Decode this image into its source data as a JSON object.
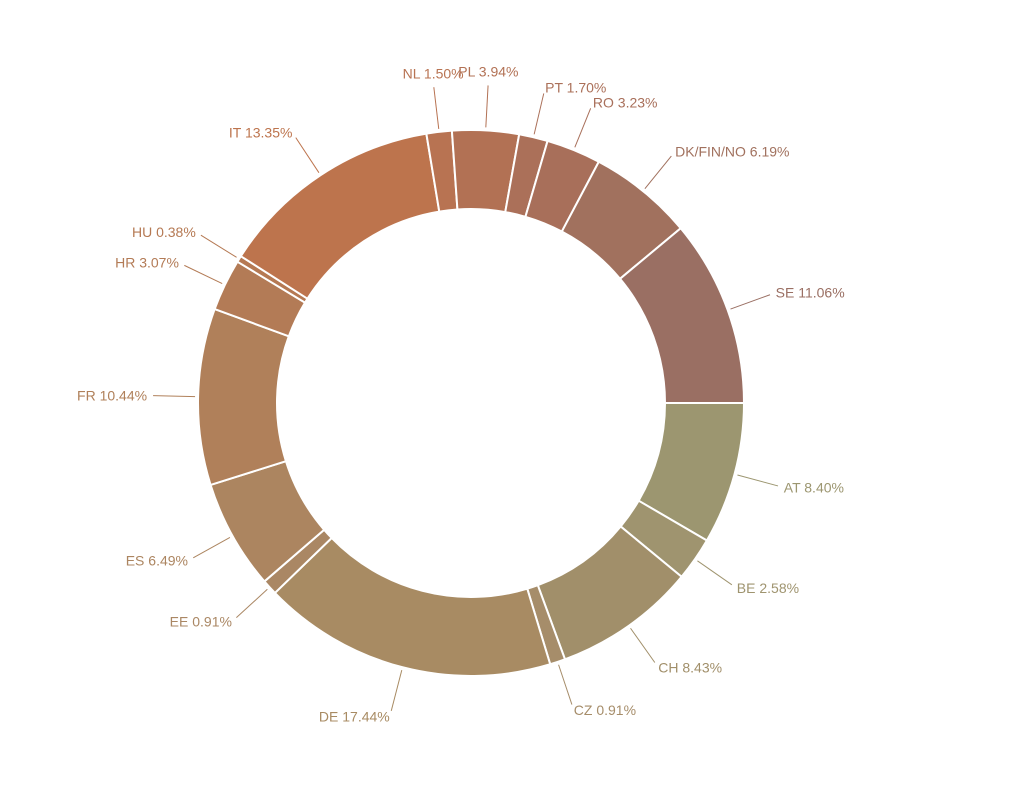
{
  "chart_data": {
    "type": "pie",
    "donut": true,
    "start_at": "3 o'clock, clockwise",
    "grid": false,
    "legend": "none (direct labels)",
    "slices": [
      {
        "name": "AT",
        "label": "AT 8.40%",
        "value": 8.4,
        "color": "#9c9670"
      },
      {
        "name": "BE",
        "label": "BE 2.58%",
        "value": 2.58,
        "color": "#9f946f"
      },
      {
        "name": "CH",
        "label": "CH 8.43%",
        "value": 8.43,
        "color": "#a18f6a"
      },
      {
        "name": "CZ",
        "label": "CZ 0.91%",
        "value": 0.91,
        "color": "#a68d6a"
      },
      {
        "name": "DE",
        "label": "DE 17.44%",
        "value": 17.44,
        "color": "#a88b63"
      },
      {
        "name": "EE",
        "label": "EE 0.91%",
        "value": 0.91,
        "color": "#aa8764"
      },
      {
        "name": "ES",
        "label": "ES 6.49%",
        "value": 6.49,
        "color": "#ac8560"
      },
      {
        "name": "FR",
        "label": "FR 10.44%",
        "value": 10.44,
        "color": "#b0805a"
      },
      {
        "name": "HR",
        "label": "HR 3.07%",
        "value": 3.07,
        "color": "#b37b56"
      },
      {
        "name": "HU",
        "label": "HU 0.38%",
        "value": 0.38,
        "color": "#b57953"
      },
      {
        "name": "IT",
        "label": "IT 13.35%",
        "value": 13.35,
        "color": "#bd744d"
      },
      {
        "name": "NL",
        "label": "NL 1.50%",
        "value": 1.5,
        "color": "#b87352"
      },
      {
        "name": "PL",
        "label": "PL 3.94%",
        "value": 3.94,
        "color": "#b27154"
      },
      {
        "name": "PT",
        "label": "PT 1.70%",
        "value": 1.7,
        "color": "#ab7059"
      },
      {
        "name": "RO",
        "label": "RO 3.23%",
        "value": 3.23,
        "color": "#a86f5a"
      },
      {
        "name": "DK/FIN/NO",
        "label": "DK/FIN/NO 6.19%",
        "value": 6.19,
        "color": "#a1715e"
      },
      {
        "name": "SE",
        "label": "SE 11.06%",
        "value": 11.06,
        "color": "#9a6f63"
      }
    ]
  }
}
